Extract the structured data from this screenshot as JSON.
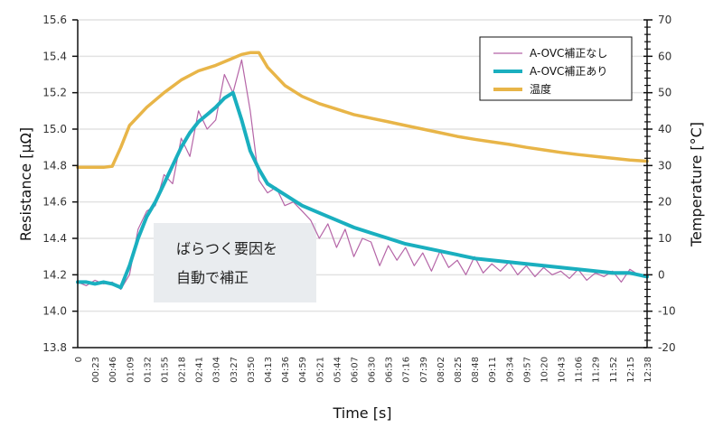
{
  "chart_data": {
    "type": "line",
    "xlabel": "Time [s]",
    "ylabel_left": "Resistance [μΩ]",
    "ylabel_right": "Temperature [°C]",
    "ylim_left": [
      13.8,
      15.6
    ],
    "ylim_right": [
      -20,
      70
    ],
    "yticks_left": [
      "15.6",
      "15.4",
      "15.2",
      "15.0",
      "14.8",
      "14.6",
      "14.4",
      "14.2",
      "14.0",
      "13.8"
    ],
    "yticks_right": [
      "70",
      "60",
      "50",
      "40",
      "30",
      "20",
      "10",
      "0",
      "-10",
      "-20"
    ],
    "xticks": [
      "0",
      "00:23",
      "00:46",
      "01:09",
      "01:32",
      "01:55",
      "02:18",
      "02:41",
      "03:04",
      "03:27",
      "03:50",
      "04:13",
      "04:36",
      "04:59",
      "05:21",
      "05:44",
      "06:07",
      "06:30",
      "06:53",
      "07:16",
      "07:39",
      "08:02",
      "08:25",
      "08:48",
      "09:11",
      "09:34",
      "09:57",
      "10:20",
      "10:43",
      "11:06",
      "11:29",
      "11:52",
      "12:15",
      "12:38"
    ],
    "grid": true,
    "legend_position": "top-right",
    "legend": [
      "A-OVC補正なし",
      "A-OVC補正あり",
      "温度"
    ],
    "annotation": [
      "ばらつく要因を",
      "自動で補正"
    ],
    "colors": {
      "raw": "#b565a7",
      "corrected": "#1aafbf",
      "temperature": "#e8b548",
      "annotation_bg": "#e9ecef"
    },
    "series": [
      {
        "name": "A-OVC補正あり",
        "axis": "left",
        "x_index": [
          0,
          0.5,
          1,
          1.5,
          2,
          2.5,
          3,
          3.5,
          4,
          4.5,
          5,
          5.5,
          6,
          6.5,
          7,
          7.5,
          8,
          8.5,
          9,
          9.5,
          10,
          10.5,
          11,
          12,
          13,
          14,
          15,
          16,
          17,
          18,
          19,
          20,
          21,
          22,
          23,
          24,
          25,
          26,
          27,
          28,
          29,
          30,
          31,
          32,
          33
        ],
        "values": [
          14.16,
          14.16,
          14.15,
          14.16,
          14.15,
          14.13,
          14.25,
          14.4,
          14.52,
          14.6,
          14.7,
          14.8,
          14.9,
          14.98,
          15.04,
          15.08,
          15.12,
          15.17,
          15.2,
          15.05,
          14.88,
          14.78,
          14.7,
          14.64,
          14.58,
          14.54,
          14.5,
          14.46,
          14.43,
          14.4,
          14.37,
          14.35,
          14.33,
          14.31,
          14.29,
          14.28,
          14.27,
          14.26,
          14.25,
          14.24,
          14.23,
          14.22,
          14.21,
          14.21,
          14.19
        ]
      },
      {
        "name": "A-OVC補正なし",
        "axis": "left",
        "x_index": [
          0,
          0.5,
          1,
          1.5,
          2,
          2.5,
          3,
          3.5,
          4,
          4.5,
          5,
          5.5,
          6,
          6.5,
          7,
          7.5,
          8,
          8.5,
          9,
          9.5,
          10,
          10.5,
          11,
          11.5,
          12,
          12.5,
          13,
          13.5,
          14,
          14.5,
          15,
          15.5,
          16,
          16.5,
          17,
          17.5,
          18,
          18.5,
          19,
          19.5,
          20,
          20.5,
          21,
          21.5,
          22,
          22.5,
          23,
          23.5,
          24,
          24.5,
          25,
          25.5,
          26,
          26.5,
          27,
          27.5,
          28,
          28.5,
          29,
          29.5,
          30,
          30.5,
          31,
          31.5,
          32,
          32.5,
          33
        ],
        "values": [
          14.16,
          14.14,
          14.17,
          14.15,
          14.16,
          14.12,
          14.2,
          14.45,
          14.55,
          14.58,
          14.75,
          14.7,
          14.95,
          14.85,
          15.1,
          15.0,
          15.05,
          15.3,
          15.2,
          15.38,
          15.1,
          14.72,
          14.65,
          14.68,
          14.58,
          14.6,
          14.55,
          14.5,
          14.4,
          14.48,
          14.35,
          14.45,
          14.3,
          14.4,
          14.38,
          14.25,
          14.36,
          14.28,
          14.35,
          14.25,
          14.32,
          14.22,
          14.33,
          14.24,
          14.28,
          14.2,
          14.3,
          14.21,
          14.26,
          14.22,
          14.27,
          14.2,
          14.25,
          14.19,
          14.24,
          14.2,
          14.22,
          14.18,
          14.23,
          14.17,
          14.21,
          14.19,
          14.22,
          14.16,
          14.23,
          14.2,
          14.19
        ]
      },
      {
        "name": "温度",
        "axis": "right",
        "x_index": [
          0,
          1,
          1.5,
          2,
          2.5,
          3,
          4,
          5,
          6,
          7,
          8,
          9,
          9.5,
          10,
          10.5,
          11,
          12,
          13,
          14,
          15,
          16,
          17,
          18,
          19,
          20,
          21,
          22,
          23,
          24,
          25,
          26,
          27,
          28,
          29,
          30,
          31,
          32,
          33
        ],
        "values": [
          29.5,
          29.5,
          29.5,
          29.8,
          35,
          41,
          46,
          50,
          53.5,
          56,
          57.5,
          59.5,
          60.5,
          61,
          61,
          57,
          52,
          49,
          47,
          45.5,
          44,
          43,
          42,
          41,
          40,
          39,
          38,
          37.2,
          36.5,
          35.8,
          35,
          34.3,
          33.6,
          33,
          32.5,
          32,
          31.5,
          31.2
        ]
      }
    ]
  }
}
